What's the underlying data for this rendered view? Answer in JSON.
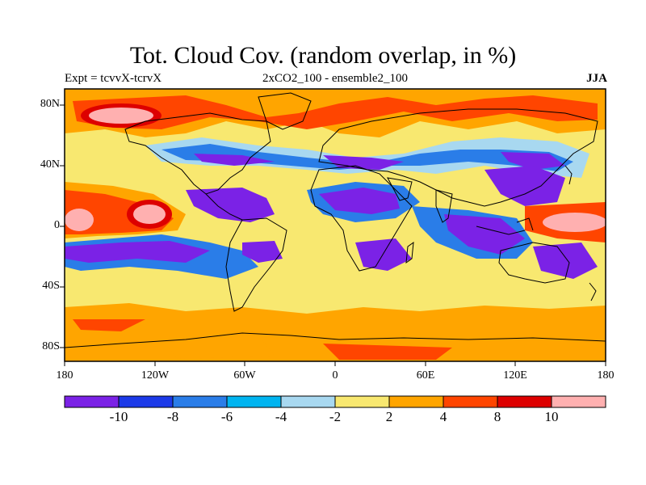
{
  "title": "Tot. Cloud Cov. (random overlap, in %)",
  "subtitle_left": "Expt = tcvvX-tcrvX",
  "subtitle_center": "2xCO2_100 - ensemble2_100",
  "subtitle_right": "JJA",
  "lat_labels": [
    "80N",
    "40N",
    "0",
    "40S",
    "80S"
  ],
  "lon_labels": [
    "180",
    "120W",
    "60W",
    "0",
    "60E",
    "120E",
    "180"
  ],
  "colorbar": {
    "colors": [
      "#7b22e6",
      "#1c3ae8",
      "#2a7de8",
      "#00b4f0",
      "#a8d8f0",
      "#f8e870",
      "#ffa500",
      "#ff4500",
      "#dd0000",
      "#ffb0b0"
    ],
    "labels": [
      "-10",
      "-8",
      "-6",
      "-4",
      "-2",
      "2",
      "4",
      "8",
      "10"
    ]
  }
}
